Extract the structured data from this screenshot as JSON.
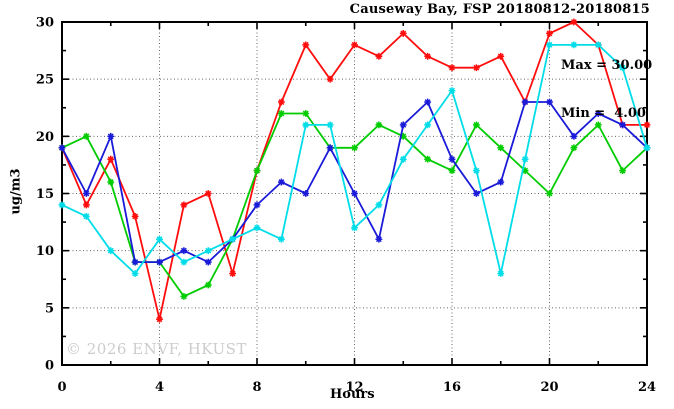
{
  "title": "Causeway Bay, FSP 20180812-20180815",
  "legend": {
    "max_label": "Max = 30.00",
    "min_label": "Min =  4.00"
  },
  "watermark": "© 2026 ENVF, HKUST",
  "colors": {
    "red": "#ff0d0d",
    "green": "#00cc00",
    "blue": "#1a1ad9",
    "cyan": "#00dde8",
    "grid": "#666666",
    "border": "#000000",
    "watermark": "#cccccc"
  },
  "chart_data": {
    "type": "line",
    "title": "Causeway Bay, FSP 20180812-20180815",
    "xlabel": "Hours",
    "ylabel": "ug/m3",
    "xlim": [
      0,
      24
    ],
    "ylim": [
      0,
      30
    ],
    "x_ticks": [
      0,
      4,
      8,
      12,
      16,
      20,
      24
    ],
    "y_ticks": [
      0,
      5,
      10,
      15,
      20,
      25,
      30
    ],
    "x_minor_step": 2,
    "y_minor_step": 2.5,
    "grid": true,
    "legend_position": "top-right",
    "stat_max": 30.0,
    "stat_min": 4.0,
    "x": [
      0,
      1,
      2,
      3,
      4,
      5,
      6,
      7,
      8,
      9,
      10,
      11,
      12,
      13,
      14,
      15,
      16,
      17,
      18,
      19,
      20,
      21,
      22,
      23,
      24
    ],
    "series": [
      {
        "name": "red",
        "color": "#ff0d0d",
        "values": [
          19,
          14,
          18,
          13,
          4,
          14,
          15,
          8,
          17,
          23,
          28,
          25,
          28,
          27,
          29,
          27,
          26,
          26,
          27,
          23,
          29,
          30,
          28,
          21,
          21
        ]
      },
      {
        "name": "green",
        "color": "#00cc00",
        "values": [
          19,
          20,
          16,
          9,
          9,
          6,
          7,
          11,
          17,
          22,
          22,
          19,
          19,
          21,
          20,
          18,
          17,
          21,
          19,
          17,
          15,
          19,
          21,
          17,
          19
        ]
      },
      {
        "name": "blue",
        "color": "#1a1ad9",
        "values": [
          19,
          15,
          20,
          9,
          9,
          10,
          9,
          11,
          14,
          16,
          15,
          19,
          15,
          11,
          21,
          23,
          18,
          15,
          16,
          23,
          23,
          20,
          22,
          21,
          19
        ]
      },
      {
        "name": "cyan",
        "color": "#00dde8",
        "values": [
          14,
          13,
          10,
          8,
          11,
          9,
          10,
          11,
          12,
          11,
          21,
          21,
          12,
          14,
          18,
          21,
          24,
          17,
          8,
          18,
          28,
          28,
          28,
          26,
          19
        ]
      }
    ]
  }
}
